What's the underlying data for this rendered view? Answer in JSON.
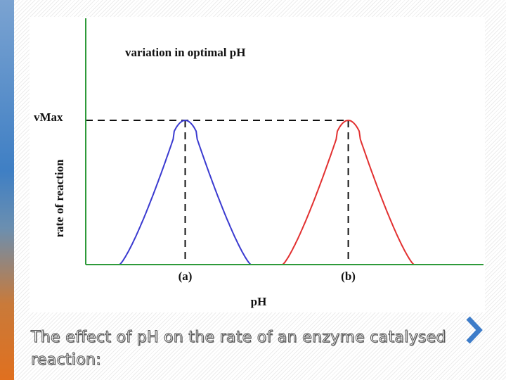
{
  "chart_data": {
    "type": "line",
    "title": "variation in optimal pH",
    "xlabel": "pH",
    "ylabel": "rate of reaction",
    "ymax_label": "vMax",
    "peak_labels": [
      "(a)",
      "(b)"
    ],
    "grid": false,
    "series": [
      {
        "peak_x": 2.5,
        "peak_y": 1.0,
        "spread": 1.65,
        "color": "#3a3ad0"
      },
      {
        "peak_x": 6.6,
        "peak_y": 1.0,
        "spread": 1.65,
        "color": "#e23030"
      }
    ],
    "xlim": [
      0,
      10
    ],
    "ylim": [
      0,
      1.0
    ]
  },
  "caption": "The effect of pH on the rate of an enzyme catalysed reaction:",
  "colors": {
    "axis": "#2e9a3a",
    "guide": "#111111"
  }
}
